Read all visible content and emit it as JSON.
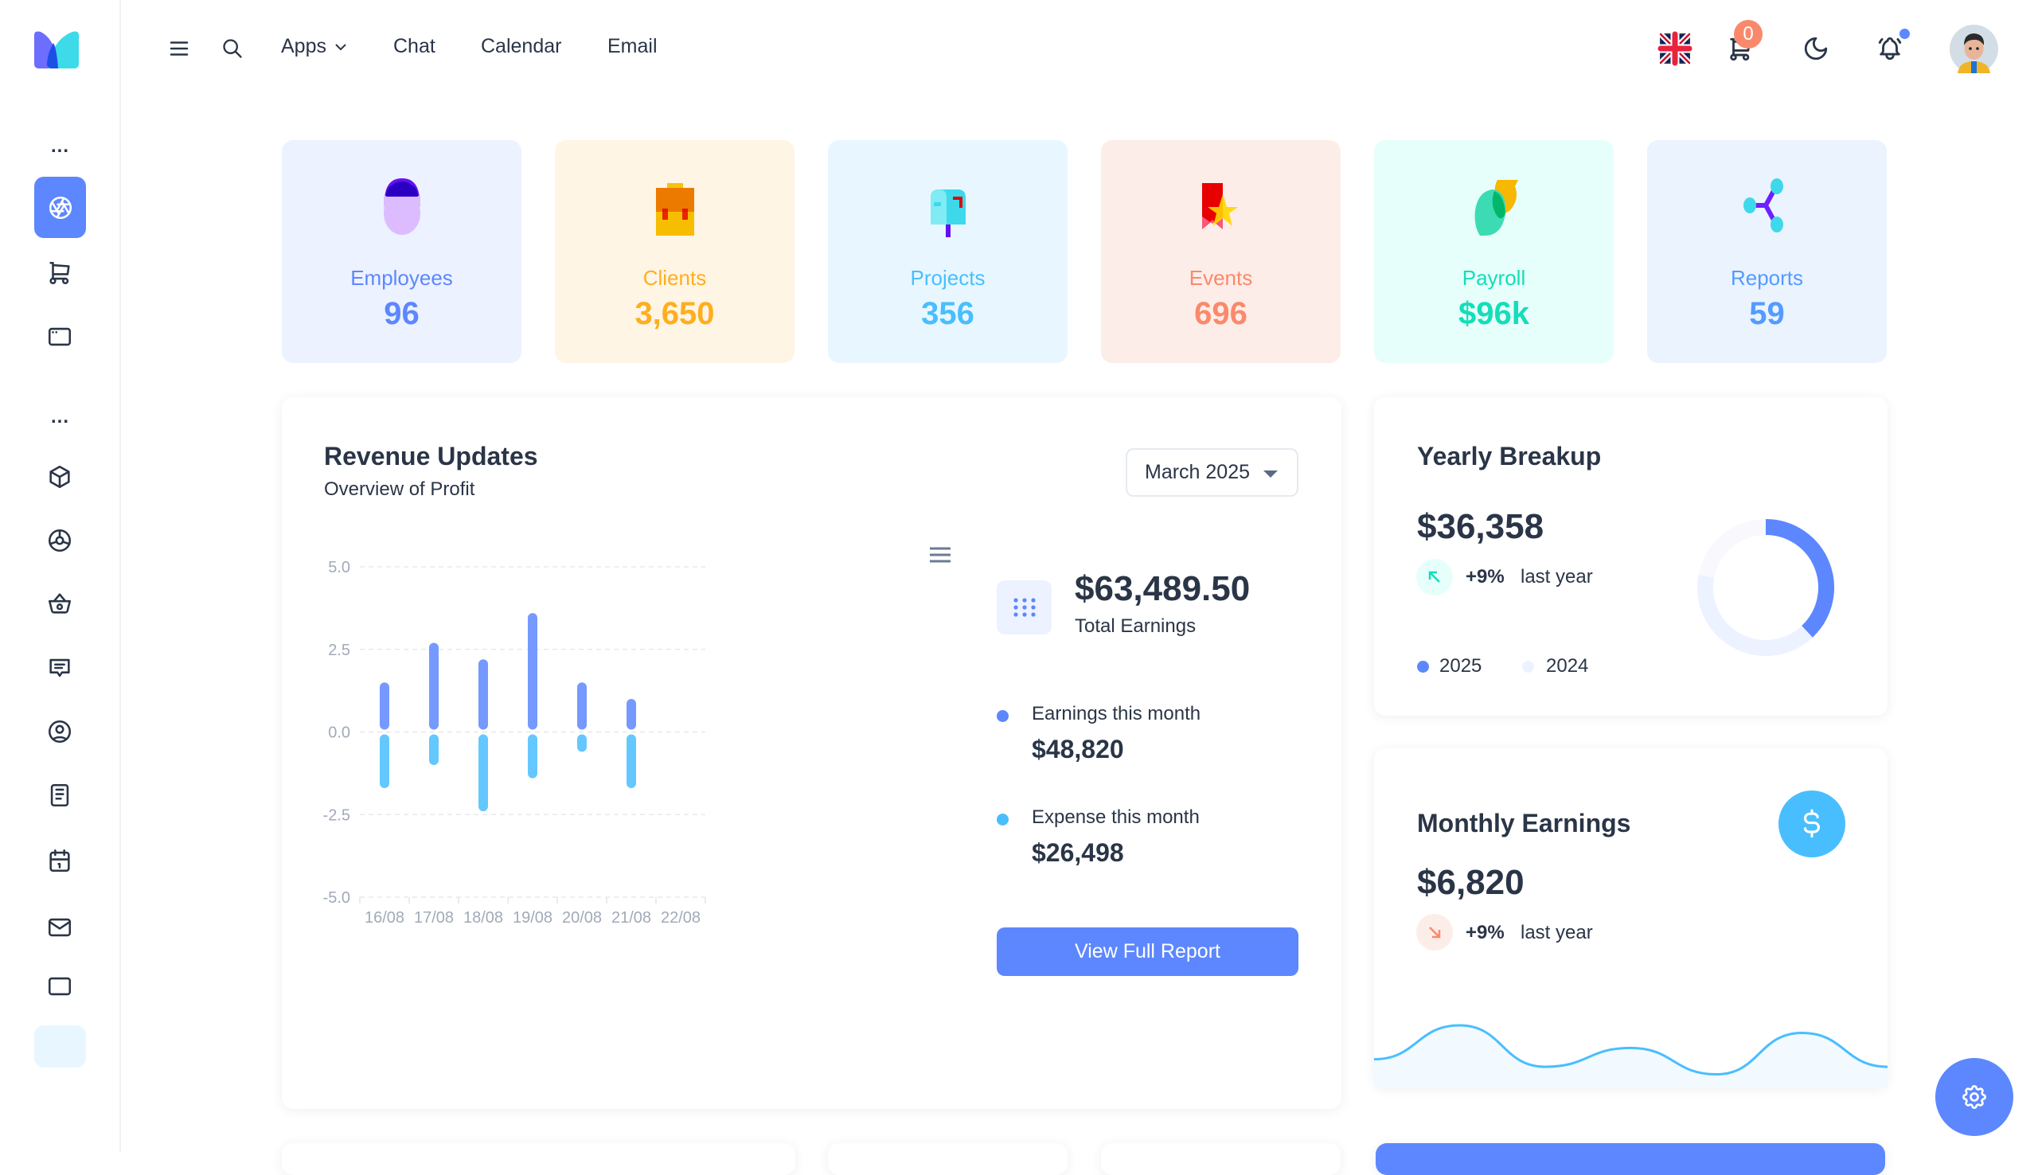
{
  "header": {
    "nav": [
      "Apps",
      "Chat",
      "Calendar",
      "Email"
    ],
    "cart_count": "0",
    "icons": [
      "menu-icon",
      "search-icon",
      "uk-flag-icon",
      "cart-icon",
      "moon-icon",
      "bell-icon",
      "avatar"
    ]
  },
  "sidebar": {
    "section_marker": "...",
    "items": [
      "dashboard",
      "cart",
      "window",
      "box",
      "chart-donut",
      "basket",
      "message",
      "user-circle",
      "notes",
      "calendar",
      "mail",
      "more"
    ]
  },
  "stats": [
    {
      "label": "Employees",
      "value": "96",
      "color": "#5d87ff",
      "bg": "#ecf2ff"
    },
    {
      "label": "Clients",
      "value": "3,650",
      "color": "#ffae1f",
      "bg": "#fef5e5"
    },
    {
      "label": "Projects",
      "value": "356",
      "color": "#49beff",
      "bg": "#e8f7ff"
    },
    {
      "label": "Events",
      "value": "696",
      "color": "#fa896b",
      "bg": "#fdede8"
    },
    {
      "label": "Payroll",
      "value": "$96k",
      "color": "#13deb9",
      "bg": "#e6fffa"
    },
    {
      "label": "Reports",
      "value": "59",
      "color": "#539bff",
      "bg": "#ebf3fe"
    }
  ],
  "revenue": {
    "title": "Revenue Updates",
    "subtitle": "Overview of Profit",
    "period": "March 2025",
    "total": "$63,489.50",
    "total_label": "Total Earnings",
    "earnings_label": "Earnings this month",
    "earnings_value": "$48,820",
    "expense_label": "Expense this month",
    "expense_value": "$26,498",
    "button": "View Full Report"
  },
  "yearly": {
    "title": "Yearly Breakup",
    "value": "$36,358",
    "change": "+9%",
    "change_label": "last year",
    "legend": [
      "2025",
      "2024"
    ]
  },
  "monthly": {
    "title": "Monthly Earnings",
    "value": "$6,820",
    "change": "+9%",
    "change_label": "last year"
  },
  "chart_data": [
    {
      "type": "bar",
      "categories": [
        "16/08",
        "17/08",
        "18/08",
        "19/08",
        "20/08",
        "21/08",
        "22/08"
      ],
      "series": [
        {
          "values": [
            1.5,
            2.7,
            2.2,
            3.6,
            1.5,
            1.0,
            null
          ],
          "color": "#5d87ff"
        },
        {
          "values": [
            -1.7,
            -1.0,
            -2.4,
            -1.4,
            -0.6,
            -1.7,
            null
          ],
          "color": "#49beff"
        }
      ],
      "yticks": [
        "5.0",
        "2.5",
        "0.0",
        "-2.5",
        "-5.0"
      ],
      "ylim": [
        -5,
        5
      ],
      "grid": true,
      "stacked": true
    },
    {
      "type": "pie",
      "donut": true,
      "values": [
        38,
        40,
        22
      ],
      "colors": [
        "#5d87ff",
        "#ecf2ff",
        "#f9f9fd"
      ],
      "legend": [
        "2025",
        "2024"
      ]
    },
    {
      "type": "area",
      "values": [
        30,
        75,
        20,
        45,
        10,
        65,
        20
      ],
      "color": "#49beff"
    }
  ]
}
